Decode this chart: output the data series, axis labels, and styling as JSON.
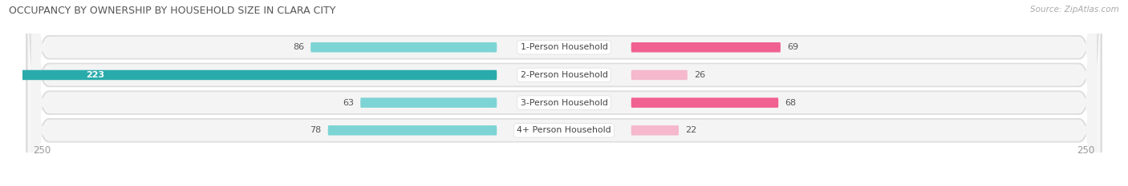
{
  "title": "OCCUPANCY BY OWNERSHIP BY HOUSEHOLD SIZE IN CLARA CITY",
  "source": "Source: ZipAtlas.com",
  "categories": [
    "1-Person Household",
    "2-Person Household",
    "3-Person Household",
    "4+ Person Household"
  ],
  "owner_values": [
    86,
    223,
    63,
    78
  ],
  "renter_values": [
    69,
    26,
    68,
    22
  ],
  "max_val": 250,
  "owner_color_light": "#7dd4d4",
  "owner_color_dark": "#2aabab",
  "renter_color_light": "#f5b8cc",
  "renter_color_dark": "#f06090",
  "row_bg_color": "#f0f0f0",
  "row_separator_color": "#dddddd",
  "row_outer_bg": "#e0e0e0",
  "label_white": "#ffffff",
  "label_dark": "#555555",
  "axis_label_color": "#999999",
  "title_color": "#555555",
  "source_color": "#aaaaaa",
  "legend_owner_color": "#5bc4c4",
  "legend_renter_color": "#f08aaa"
}
